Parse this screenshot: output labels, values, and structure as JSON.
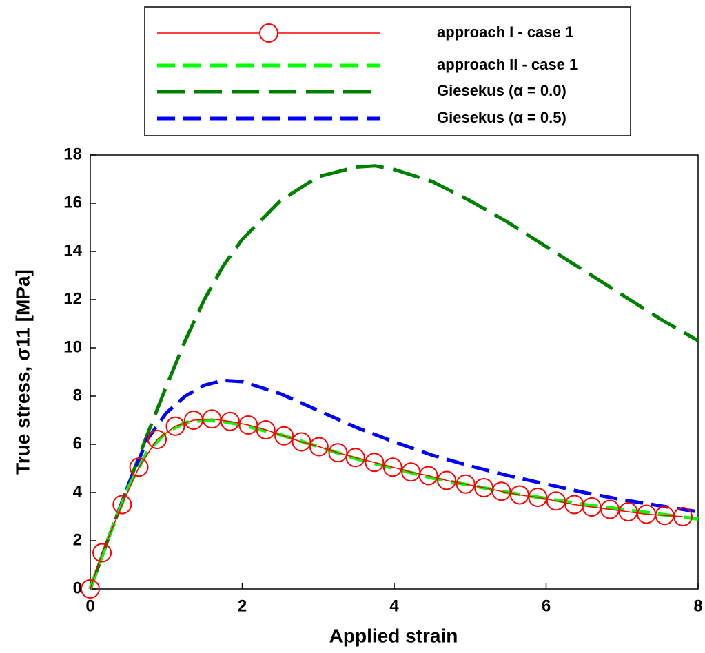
{
  "chart_data": {
    "type": "line",
    "xlabel": "Applied strain",
    "ylabel": "True stress, σ11 [MPa]",
    "xlim": [
      0,
      8
    ],
    "xticks": [
      0,
      2,
      4,
      6,
      8
    ],
    "ylim": [
      0,
      18
    ],
    "yticks": [
      0,
      2,
      4,
      6,
      8,
      10,
      12,
      14,
      16,
      18
    ],
    "legend": "top",
    "series": [
      {
        "name": "approach I - case 1",
        "color": "#ff0000",
        "line_style": "solid",
        "marker": "circle",
        "x": [
          0,
          0.155,
          0.42,
          0.64,
          0.88,
          1.12,
          1.36,
          1.6,
          1.84,
          2.08,
          2.31,
          2.55,
          2.78,
          3.01,
          3.26,
          3.49,
          3.74,
          3.98,
          4.22,
          4.45,
          4.69,
          4.94,
          5.18,
          5.41,
          5.65,
          5.89,
          6.13,
          6.37,
          6.6,
          6.84,
          7.08,
          7.32,
          7.56,
          7.8
        ],
        "values": [
          0,
          1.5,
          3.5,
          5.05,
          6.2,
          6.75,
          7.0,
          7.05,
          6.95,
          6.8,
          6.6,
          6.35,
          6.1,
          5.9,
          5.65,
          5.45,
          5.25,
          5.05,
          4.85,
          4.7,
          4.5,
          4.35,
          4.2,
          4.05,
          3.9,
          3.8,
          3.65,
          3.5,
          3.4,
          3.3,
          3.2,
          3.1,
          3.05,
          3.0
        ]
      },
      {
        "name": "approach II  - case 1",
        "color": "#00ff00",
        "line_style": "dashed",
        "x": [
          0,
          0.25,
          0.5,
          0.75,
          1,
          1.25,
          1.5,
          1.75,
          2,
          2.5,
          3,
          3.5,
          4,
          4.5,
          5,
          5.5,
          6,
          6.5,
          7,
          7.5,
          8
        ],
        "values": [
          0,
          2.2,
          4.2,
          5.7,
          6.5,
          6.9,
          7.0,
          6.95,
          6.8,
          6.4,
          5.9,
          5.4,
          5.0,
          4.6,
          4.3,
          4.0,
          3.75,
          3.5,
          3.3,
          3.1,
          2.9
        ]
      },
      {
        "name": "Giesekus (α = 0.0)",
        "color": "#008000",
        "line_style": "long-dash",
        "x": [
          0,
          0.25,
          0.5,
          0.75,
          1,
          1.25,
          1.5,
          1.75,
          2,
          2.5,
          3,
          3.5,
          3.75,
          4,
          4.5,
          5,
          5.5,
          6,
          6.5,
          7,
          7.5,
          8
        ],
        "values": [
          0,
          2.2,
          4.3,
          6.4,
          8.4,
          10.3,
          12.0,
          13.4,
          14.5,
          16.1,
          17.1,
          17.5,
          17.55,
          17.4,
          16.9,
          16.1,
          15.2,
          14.2,
          13.2,
          12.2,
          11.2,
          10.3
        ]
      },
      {
        "name": "Giesekus (α = 0.5)",
        "color": "#0000ff",
        "line_style": "dashed",
        "x": [
          0,
          0.25,
          0.5,
          0.75,
          1,
          1.25,
          1.5,
          1.75,
          2,
          2.5,
          3,
          3.5,
          4,
          4.5,
          5,
          5.5,
          6,
          6.5,
          7,
          7.5,
          8
        ],
        "values": [
          0,
          2.2,
          4.3,
          6.2,
          7.3,
          8.0,
          8.45,
          8.65,
          8.6,
          8.1,
          7.4,
          6.7,
          6.1,
          5.55,
          5.1,
          4.7,
          4.35,
          4.0,
          3.7,
          3.45,
          3.2
        ]
      }
    ]
  }
}
